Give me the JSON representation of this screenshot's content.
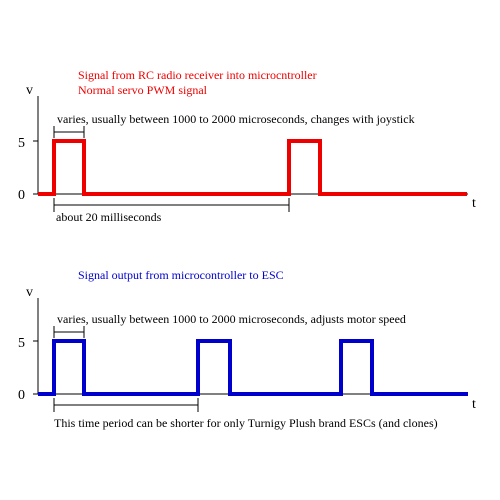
{
  "top": {
    "title_line1": "Signal from RC radio receiver into microcntroller",
    "title_line2": "Normal servo PWM signal",
    "title_color": "#ee0000",
    "y_axis_label": "v",
    "x_axis_label": "t",
    "tick_high": "5",
    "tick_low": "0",
    "pulse_width_note": "varies, usually between 1000 to 2000 microseconds, changes with joystick",
    "period_note": "about 20 milliseconds",
    "signal_color": "#ee0000"
  },
  "bottom": {
    "title": "Signal output from microcontroller to ESC",
    "title_color": "#0000cc",
    "y_axis_label": "v",
    "x_axis_label": "t",
    "tick_high": "5",
    "tick_low": "0",
    "pulse_width_note": "varies, usually between 1000 to 2000 microseconds, adjusts motor speed",
    "period_note": "This time period can be shorter for only Turnigy Plush brand ESCs (and clones)",
    "signal_color": "#0000cc"
  }
}
